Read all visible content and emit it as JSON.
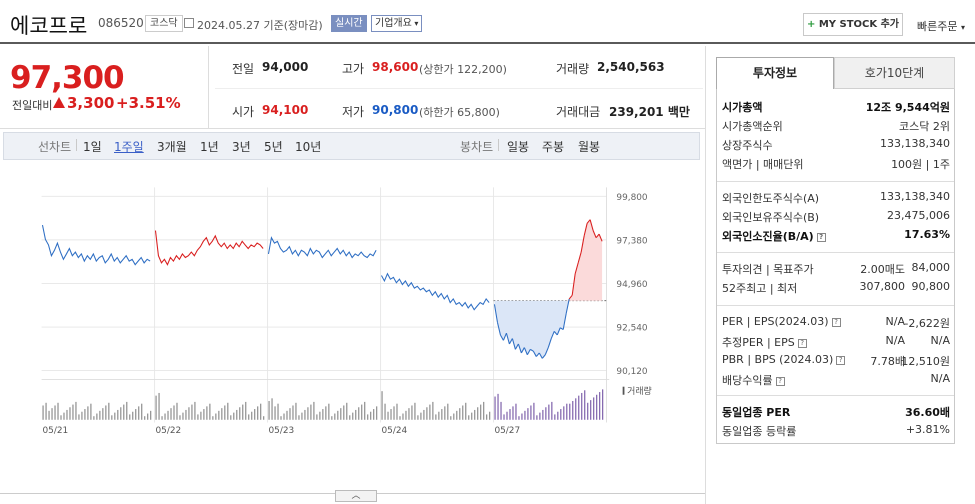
{
  "header": {
    "stock_name": "에코프로",
    "stock_code": "086520",
    "market_tag": "코스닥",
    "date_text": "2024.05.27 기준(장마감)",
    "live_label": "실시간",
    "company_overview": "기업개요",
    "mystock_label": "MY STOCK 추가",
    "mystock_plus": "+",
    "quick_order": "빠른주문"
  },
  "price": {
    "current": "97,300",
    "change_label": "전일대비",
    "change": "3,300",
    "change_pct": "+3.51%",
    "direction": "up"
  },
  "quote": {
    "prev_close_label": "전일",
    "prev_close": "94,000",
    "high_label": "고가",
    "high": "98,600",
    "upper_limit": "(상한가 122,200)",
    "volume_label": "거래량",
    "volume": "2,540,563",
    "open_label": "시가",
    "open": "94,100",
    "low_label": "저가",
    "low": "90,800",
    "lower_limit": "(하한가 65,800)",
    "amount_label": "거래대금",
    "amount": "239,201",
    "amount_unit": "백만"
  },
  "period_bar": {
    "line_label": "선차트",
    "line_periods": [
      "1일",
      "1주일",
      "3개월",
      "1년",
      "3년",
      "5년",
      "10년"
    ],
    "selected": "1주일",
    "candle_label": "봉차트",
    "candle_periods": [
      "일봉",
      "주봉",
      "월봉"
    ]
  },
  "chart_data": {
    "type": "line",
    "y_ticks": [
      "99,800",
      "97,380",
      "94,960",
      "92,540",
      "90,120"
    ],
    "ylim": [
      90120,
      99800
    ],
    "x_labels": [
      "05/21",
      "05/22",
      "05/23",
      "05/24",
      "05/27"
    ],
    "baseline": 94000,
    "volume_label": "거래량",
    "colors": {
      "up": "#d91f1f",
      "down": "#2f6fc4",
      "fill_down": "#dbe6f7",
      "fill_up": "#fbdada",
      "volume": "#8a8a8a",
      "volume_last": "#7a5ca8"
    },
    "days": [
      {
        "label": "05/21",
        "prices": [
          98200,
          97400,
          97100,
          96500,
          96800,
          97200,
          96700,
          96300,
          96600,
          96900,
          96500,
          96700,
          96400,
          96600,
          96200,
          96500,
          96300,
          96600,
          96200,
          96400,
          96500,
          96100,
          96300,
          96600,
          96200,
          96400,
          96100,
          96300,
          96500,
          96200,
          96300,
          96000,
          96200,
          96400,
          96100,
          96300,
          96200
        ]
      },
      {
        "label": "05/22",
        "prices": [
          97900,
          96500,
          96100,
          96300,
          96000,
          96400,
          96200,
          96500,
          96300,
          96600,
          96400,
          96500,
          96700,
          96500,
          96800,
          97000,
          97300,
          97500,
          97100,
          97300,
          97600,
          97200,
          97000,
          97200,
          96900,
          97100,
          96900,
          97200,
          97000,
          97300,
          97100,
          96900,
          97100,
          97000,
          97200,
          97100,
          96900
        ]
      },
      {
        "label": "05/23",
        "prices": [
          96600,
          97500,
          97200,
          97300,
          96900,
          96700,
          96800,
          97000,
          96600,
          96800,
          96500,
          96800,
          96700,
          96500,
          96900,
          96600,
          96800,
          96700,
          96400,
          96600,
          96800,
          96500,
          96700,
          96900,
          96600,
          96800,
          96500,
          96700,
          96400,
          96600,
          96500,
          96700,
          96500,
          96400,
          96600,
          96500,
          96800
        ]
      },
      {
        "label": "05/24",
        "prices": [
          95400,
          95100,
          95500,
          95200,
          95300,
          95000,
          95200,
          94900,
          95100,
          94800,
          95000,
          94700,
          94800,
          94600,
          94700,
          94500,
          94600,
          94300,
          94500,
          94200,
          94400,
          94100,
          94300,
          93900,
          94100,
          93800,
          93900,
          93700,
          93900,
          93600,
          93800,
          93500,
          93700,
          93900,
          93800,
          94100,
          93900
        ]
      },
      {
        "label": "05/27",
        "prices": [
          93800,
          92800,
          92100,
          91800,
          92200,
          91600,
          91900,
          91300,
          91600,
          91100,
          91400,
          91000,
          91300,
          91200,
          90900,
          91100,
          90800,
          91000,
          91400,
          91900,
          92300,
          92100,
          92500,
          92400,
          93300,
          94100,
          94300,
          95500,
          96100,
          96700,
          97600,
          98300,
          98500,
          97900,
          97500,
          97700,
          97300
        ]
      }
    ]
  },
  "right_panel": {
    "tab_active": "투자정보",
    "tab_inactive": "호가10단계",
    "rows1": [
      {
        "label": "시가총액",
        "value": "12조 9,544억원",
        "bold": true,
        "info": false
      },
      {
        "label": "시가총액순위",
        "value": "코스닥 2위",
        "bold": false,
        "info": false
      },
      {
        "label": "상장주식수",
        "value": "133,138,340",
        "bold": false,
        "info": false
      },
      {
        "label": "액면가 | 매매단위",
        "value": "100원 | 1주",
        "bold": false,
        "info": false
      }
    ],
    "rows2": [
      {
        "label": "외국인한도주식수(A)",
        "value": "133,138,340",
        "bold": false,
        "info": false
      },
      {
        "label": "외국인보유주식수(B)",
        "value": "23,475,006",
        "bold": false,
        "info": false
      },
      {
        "label": "외국인소진율(B/A)",
        "value": "17.63%",
        "bold": true,
        "info": true
      }
    ],
    "opinion_label": "투자의견 | 목표주가",
    "opinion_value": "2.00매도",
    "target_value": "84,000",
    "week52_label": "52주최고 | 최저",
    "week52_high": "307,800",
    "week52_low": "90,800",
    "rows4": [
      {
        "label": "PER | EPS(2024.03)",
        "v1": "N/A",
        "v2": "-2,622원"
      },
      {
        "label": "추정PER | EPS",
        "v1": "N/A",
        "v2": "N/A"
      },
      {
        "label": "PBR | BPS (2024.03)",
        "v1": "7.78배",
        "v2": "12,510원"
      },
      {
        "label": "배당수익률",
        "v1": "",
        "v2": "N/A"
      }
    ],
    "industry_per_label": "동일업종 PER",
    "industry_per": "36.60배",
    "industry_rate_label": "동일업종 등락률",
    "industry_rate": "+3.81%"
  }
}
